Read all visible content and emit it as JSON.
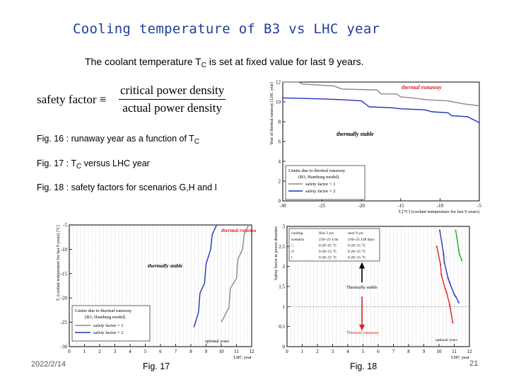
{
  "slide": {
    "title": "Cooling temperature of B3 vs LHC year",
    "subtitle_pre": "The coolant temperature T",
    "subtitle_sub": "C",
    "subtitle_post": " is set at fixed value for last 9 years.",
    "formula": {
      "lhs": "safety factor ≡",
      "numerator": "critical power density",
      "denominator": "actual power density"
    },
    "fig_lines": [
      {
        "pre": "Fig. 16 : runaway year as a function of  T",
        "sub": "C",
        "post": ""
      },
      {
        "pre": "Fig. 17 : T",
        "sub": "C",
        "post": " versus LHC year"
      },
      {
        "pre": "Fig. 18 : safety factors for scenarios G,H and I",
        "sub": "",
        "post": ""
      }
    ],
    "footer": {
      "date": "2022/2/14",
      "page": "21",
      "fig17_caption": "Fig. 17",
      "fig18_caption": "Fig. 18"
    },
    "colors": {
      "title": "#1f3f99",
      "grid": "#888888",
      "red": "#dd2222",
      "blue": "#2233bb",
      "green": "#22aa33"
    }
  },
  "chart_data": [
    {
      "type": "line",
      "id": "fig16",
      "title": "Fig. 16",
      "xlabel": "Tₒ[°C] (coolant temperature for last 9 years)",
      "ylabel": "Year of thermal runaway [LHC year]",
      "xlim": [
        -30,
        -5
      ],
      "ylim": [
        0,
        12
      ],
      "x_ticks": [
        -30,
        -25,
        -20,
        -15,
        -10,
        -5
      ],
      "y_ticks": [
        0,
        2,
        4,
        6,
        8,
        10,
        12
      ],
      "annotations": [
        "thermal runaway",
        "thermally stable"
      ],
      "legend_title": [
        "Limits due to thermal runaway",
        "(B3, Hamburg model)"
      ],
      "series": [
        {
          "name": "safety factor = 1",
          "color": "#888888",
          "x": [
            -30,
            -28,
            -27.5,
            -23.5,
            -22.5,
            -18,
            -17.5,
            -15.5,
            -15,
            -13.5,
            -11.5,
            -9,
            -7,
            -5
          ],
          "y": [
            12,
            12,
            11.8,
            11.6,
            11.3,
            11.2,
            10.8,
            10.8,
            10.5,
            10.4,
            10.2,
            10.1,
            9.8,
            9.6
          ]
        },
        {
          "name": "safety factor = 2",
          "color": "#2233bb",
          "x": [
            -30,
            -25,
            -22,
            -20,
            -19,
            -16,
            -15,
            -12,
            -11,
            -9,
            -8.5,
            -6.5,
            -6,
            -5
          ],
          "y": [
            10.4,
            10.3,
            10.2,
            10.1,
            9.5,
            9.4,
            9.3,
            9.2,
            9.0,
            8.9,
            8.6,
            8.5,
            8.3,
            7.9
          ]
        }
      ]
    },
    {
      "type": "line",
      "id": "fig17",
      "title": "Fig. 17",
      "xlabel": "LHC year",
      "ylabel": "Tₒ (coolant temperature for last 9 years) [°C]",
      "xlim": [
        0,
        12
      ],
      "ylim": [
        -30,
        -5
      ],
      "x_ticks": [
        0,
        1,
        2,
        3,
        4,
        5,
        6,
        7,
        8,
        9,
        10,
        11,
        12
      ],
      "y_ticks": [
        -30,
        -25,
        -20,
        -15,
        -10,
        -5
      ],
      "annotations": [
        "thermal runaway",
        "thermally stable",
        "optional years"
      ],
      "legend_title": [
        "Limits due to thermal runaway",
        "(B3, Hamburg model)"
      ],
      "series": [
        {
          "name": "safety factor = 1",
          "color": "#888888",
          "x": [
            11.8,
            11.5,
            11.4,
            11.1,
            11.0,
            10.6,
            10.5,
            10.0
          ],
          "y": [
            -5,
            -7,
            -10,
            -12,
            -16,
            -18,
            -22,
            -25
          ]
        },
        {
          "name": "safety factor = 2",
          "color": "#2233bb",
          "x": [
            9.7,
            9.4,
            9.3,
            9.0,
            8.9,
            8.6,
            8.5,
            8.2
          ],
          "y": [
            -5,
            -7,
            -10,
            -13,
            -17,
            -19,
            -23,
            -26
          ]
        }
      ]
    },
    {
      "type": "line",
      "id": "fig18",
      "title": "Fig. 18",
      "xlabel": "LHC year",
      "ylabel": "Safety factor in power densities",
      "xlim": [
        0,
        12
      ],
      "ylim": [
        0,
        3
      ],
      "x_ticks": [
        0,
        1,
        2,
        3,
        4,
        5,
        6,
        7,
        8,
        9,
        10,
        11,
        12
      ],
      "y_ticks": [
        0,
        0.5,
        1,
        1.5,
        2,
        2.5,
        3
      ],
      "annotations": [
        "Thermally stable",
        "Thermal runaway",
        "optional years"
      ],
      "legend_header": [
        "cooling",
        "first 2 yrs",
        "next 9 yrs"
      ],
      "legend_rows": [
        {
          "label": "scenario",
          "a": "216~23 1/4s",
          "b": "216~25 128 days"
        },
        {
          "label": "G",
          "a": "0  20~25 °C",
          "b": "0  20~15 °C"
        },
        {
          "label": "H",
          "a": "0  20~15 °C",
          "b": "0  20~15 °C"
        },
        {
          "label": "I",
          "a": "0  20~15 °C",
          "b": "0  20~15 °C"
        }
      ],
      "series": [
        {
          "name": "G",
          "color": "#22aa33",
          "x": [
            11.1,
            11.3,
            11.35,
            11.5
          ],
          "y": [
            2.9,
            2.4,
            2.3,
            2.15
          ]
        },
        {
          "name": "H",
          "color": "#2233bb",
          "x": [
            10.05,
            10.3,
            10.35,
            10.6,
            10.7,
            11.0,
            11.1,
            11.3
          ],
          "y": [
            2.9,
            2.3,
            2.1,
            1.7,
            1.6,
            1.3,
            1.25,
            1.1
          ]
        },
        {
          "name": "I",
          "color": "#dd2222",
          "x": [
            9.85,
            10.1,
            10.15,
            10.4,
            10.5,
            10.7,
            10.75,
            10.9
          ],
          "y": [
            2.5,
            2.05,
            1.8,
            1.45,
            1.35,
            1.05,
            0.95,
            0.6
          ]
        }
      ]
    }
  ]
}
